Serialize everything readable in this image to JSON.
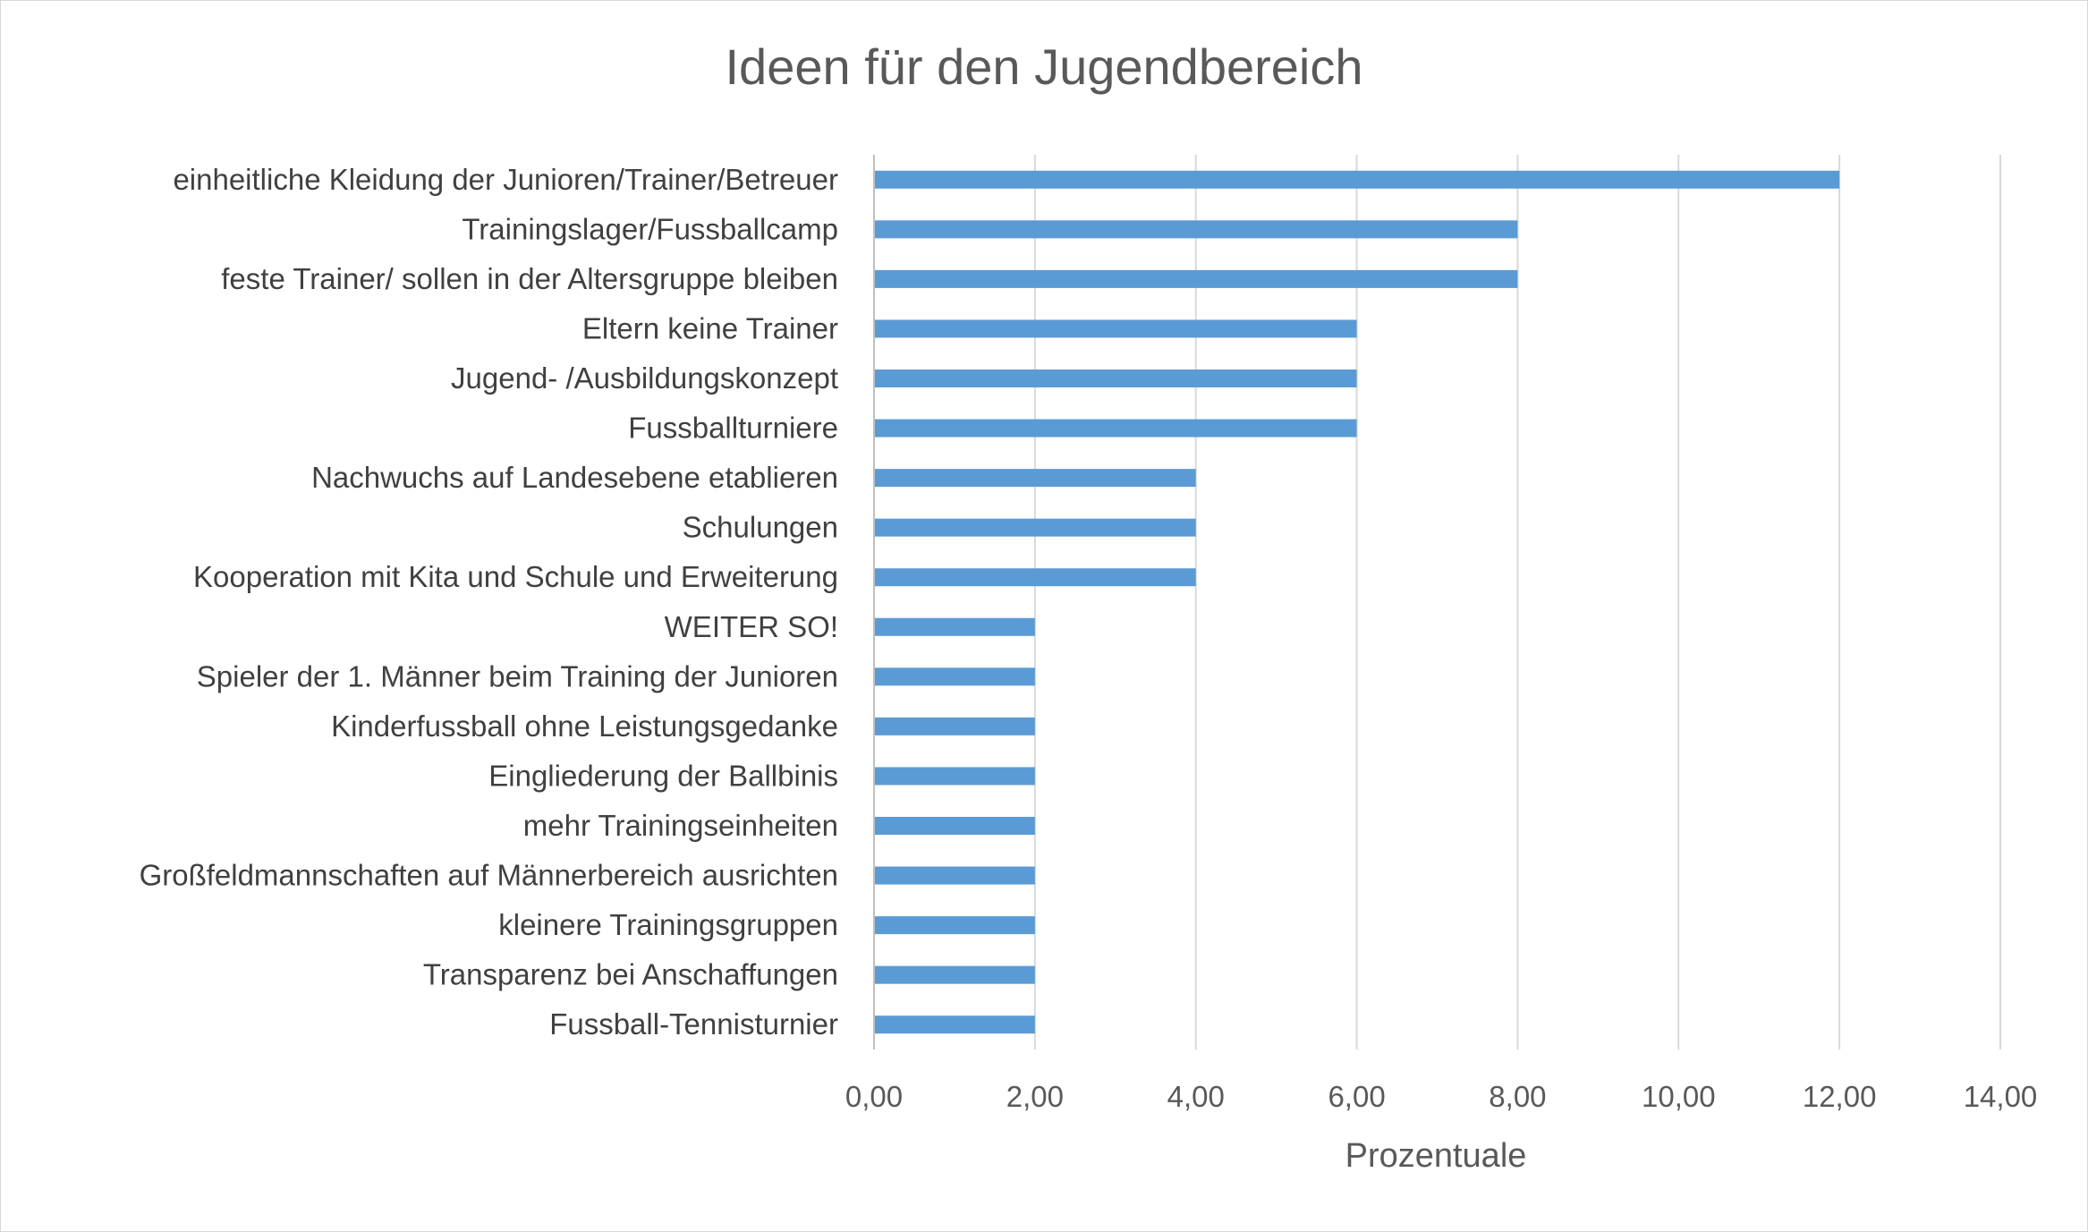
{
  "chart_data": {
    "type": "bar",
    "orientation": "horizontal",
    "title": "Ideen für den Jugendbereich",
    "xlabel": "Prozentuale",
    "ylabel": "",
    "xlim": [
      0,
      14
    ],
    "ticks": [
      0,
      2,
      4,
      6,
      8,
      10,
      12,
      14
    ],
    "tick_labels": [
      "0,00",
      "2,00",
      "4,00",
      "6,00",
      "8,00",
      "10,00",
      "12,00",
      "14,00"
    ],
    "grid": true,
    "legend": "none",
    "bar_color": "#5b9bd5",
    "categories": [
      "einheitliche Kleidung der Junioren/Trainer/Betreuer",
      "Trainingslager/Fussballcamp",
      "feste Trainer/  sollen in der Altersgruppe bleiben",
      "Eltern keine Trainer",
      "Jugend- /Ausbildungskonzept",
      "Fussballturniere",
      "Nachwuchs auf Landesebene etablieren",
      "Schulungen",
      "Kooperation mit Kita und Schule und Erweiterung",
      "WEITER SO!",
      "Spieler der 1. Männer beim Training der Junioren",
      "Kinderfussball ohne Leistungsgedanke",
      "Eingliederung der Ballbinis",
      "mehr Trainingseinheiten",
      "Großfeldmannschaften auf Männerbereich ausrichten",
      "kleinere Trainingsgruppen",
      "Transparenz bei Anschaffungen",
      "Fussball-Tennisturnier"
    ],
    "values": [
      12,
      8,
      8,
      6,
      6,
      6,
      4,
      4,
      4,
      2,
      2,
      2,
      2,
      2,
      2,
      2,
      2,
      2
    ]
  }
}
